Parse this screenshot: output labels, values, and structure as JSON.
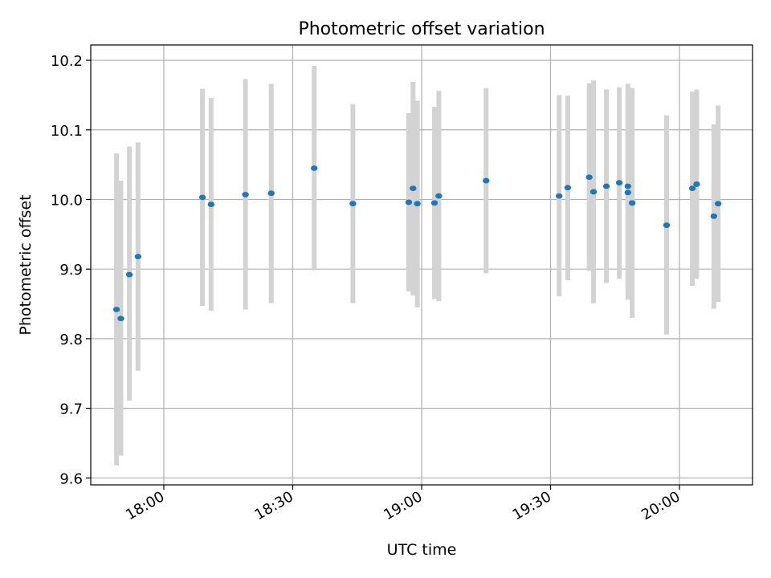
{
  "chart_data": {
    "type": "scatter",
    "title": "Photometric offset variation",
    "xlabel": "UTC time",
    "ylabel": "Photometric offset",
    "xlim": [
      "17:43",
      "20:17"
    ],
    "ylim": [
      9.59,
      10.222
    ],
    "x_ticks": [
      "18:00",
      "18:30",
      "19:00",
      "19:30",
      "20:00"
    ],
    "y_ticks": [
      9.6,
      9.7,
      9.8,
      9.9,
      10.0,
      10.1,
      10.2
    ],
    "y_tick_labels": [
      "9.6",
      "9.7",
      "9.8",
      "9.9",
      "10.0",
      "10.1",
      "10.2"
    ],
    "grid": true,
    "error_bar_color": "#d3d3d3",
    "point_color": "#1f77b4",
    "points": [
      {
        "t": "17:49",
        "y": 9.842,
        "lo": 9.618,
        "hi": 10.066
      },
      {
        "t": "17:50",
        "y": 9.829,
        "lo": 9.632,
        "hi": 10.027
      },
      {
        "t": "17:52",
        "y": 9.892,
        "lo": 9.711,
        "hi": 10.076
      },
      {
        "t": "17:54",
        "y": 9.918,
        "lo": 9.754,
        "hi": 10.082
      },
      {
        "t": "18:09",
        "y": 10.003,
        "lo": 9.847,
        "hi": 10.159
      },
      {
        "t": "18:11",
        "y": 9.993,
        "lo": 9.84,
        "hi": 10.146
      },
      {
        "t": "18:19",
        "y": 10.007,
        "lo": 9.842,
        "hi": 10.173
      },
      {
        "t": "18:25",
        "y": 10.009,
        "lo": 9.851,
        "hi": 10.166
      },
      {
        "t": "18:35",
        "y": 10.045,
        "lo": 9.898,
        "hi": 10.192
      },
      {
        "t": "18:44",
        "y": 9.994,
        "lo": 9.851,
        "hi": 10.137
      },
      {
        "t": "18:57",
        "y": 9.996,
        "lo": 9.868,
        "hi": 10.124
      },
      {
        "t": "18:58",
        "y": 10.016,
        "lo": 9.862,
        "hi": 10.169
      },
      {
        "t": "18:59",
        "y": 9.994,
        "lo": 9.845,
        "hi": 10.142
      },
      {
        "t": "19:03",
        "y": 9.995,
        "lo": 9.857,
        "hi": 10.133
      },
      {
        "t": "19:04",
        "y": 10.005,
        "lo": 9.854,
        "hi": 10.156
      },
      {
        "t": "19:15",
        "y": 10.027,
        "lo": 9.894,
        "hi": 10.16
      },
      {
        "t": "19:32",
        "y": 10.005,
        "lo": 9.861,
        "hi": 10.15
      },
      {
        "t": "19:34",
        "y": 10.017,
        "lo": 9.884,
        "hi": 10.149
      },
      {
        "t": "19:39",
        "y": 10.032,
        "lo": 9.897,
        "hi": 10.167
      },
      {
        "t": "19:40",
        "y": 10.011,
        "lo": 9.851,
        "hi": 10.171
      },
      {
        "t": "19:43",
        "y": 10.019,
        "lo": 9.88,
        "hi": 10.158
      },
      {
        "t": "19:46",
        "y": 10.024,
        "lo": 9.886,
        "hi": 10.161
      },
      {
        "t": "19:48",
        "y": 10.019,
        "lo": 9.872,
        "hi": 10.166
      },
      {
        "t": "19:48",
        "y": 10.01,
        "lo": 9.856,
        "hi": 10.164
      },
      {
        "t": "19:49",
        "y": 9.995,
        "lo": 9.83,
        "hi": 10.16
      },
      {
        "t": "19:57",
        "y": 9.963,
        "lo": 9.806,
        "hi": 10.121
      },
      {
        "t": "20:03",
        "y": 10.016,
        "lo": 9.876,
        "hi": 10.155
      },
      {
        "t": "20:04",
        "y": 10.022,
        "lo": 9.886,
        "hi": 10.158
      },
      {
        "t": "20:08",
        "y": 9.976,
        "lo": 9.843,
        "hi": 10.108
      },
      {
        "t": "20:09",
        "y": 9.994,
        "lo": 9.853,
        "hi": 10.135
      }
    ]
  }
}
